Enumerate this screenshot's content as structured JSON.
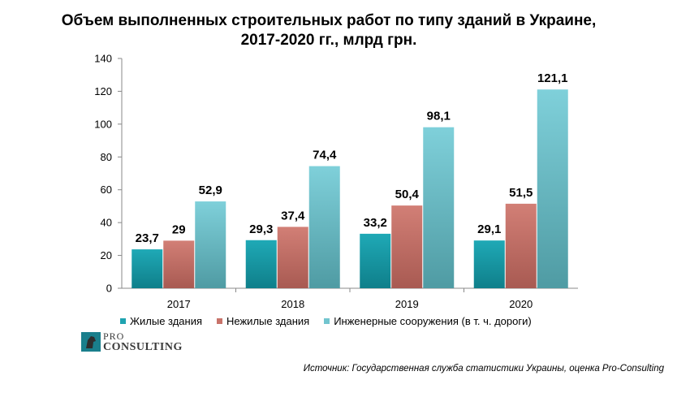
{
  "title_line1": "Объем выполненных строительных работ по типу зданий в Украине,",
  "title_line2": "2017-2020 гг., млрд грн.",
  "logo": {
    "pro": "PRO",
    "consulting": "CONSULTING"
  },
  "source": "Источник: Государственная служба статистики Украины, оценка Pro-Consulting",
  "chart_data": {
    "type": "bar",
    "categories": [
      "2017",
      "2018",
      "2019",
      "2020"
    ],
    "series": [
      {
        "name": "Жилые здания",
        "values": [
          23.7,
          29.3,
          33.2,
          29.1
        ],
        "labels": [
          "23,7",
          "29,3",
          "33,2",
          "29,1"
        ],
        "color": "#1fa3b0"
      },
      {
        "name": "Нежилые здания",
        "values": [
          29,
          37.4,
          50.4,
          51.5
        ],
        "labels": [
          "29",
          "37,4",
          "50,4",
          "51,5"
        ],
        "color": "#c8736a"
      },
      {
        "name": "Инженерные сооружения (в т. ч. дороги)",
        "values": [
          52.9,
          74.4,
          98.1,
          121.1
        ],
        "labels": [
          "52,9",
          "74,4",
          "98,1",
          "121,1"
        ],
        "color": "#72c5cf"
      }
    ],
    "ylim": [
      0,
      140
    ],
    "yticks": [
      0,
      20,
      40,
      60,
      80,
      100,
      120,
      140
    ],
    "grid": false,
    "legend": "bottom"
  }
}
